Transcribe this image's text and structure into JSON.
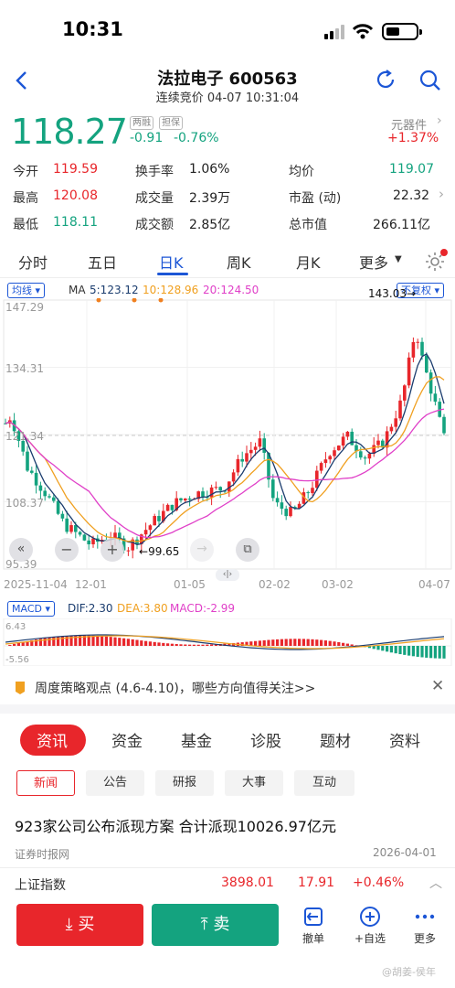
{
  "status": {
    "time": "10:31"
  },
  "header": {
    "title": "法拉电子 600563",
    "subtitle": "连续竞价 04-07 10:31:04"
  },
  "quote": {
    "price": "118.27",
    "tag1": "两融",
    "tag2": "担保",
    "change": "-0.91",
    "change_pct": "-0.76%",
    "sector": "元器件",
    "sector_pct": "+1.37%"
  },
  "stats": [
    {
      "l1": "今开",
      "v1": "119.59",
      "l2": "换手率",
      "v2": "1.06%",
      "l3": "均价",
      "v3": "119.07"
    },
    {
      "l1": "最高",
      "v1": "120.08",
      "l2": "成交量",
      "v2": "2.39万",
      "l3": "市盈 (动)",
      "v3": "22.32"
    },
    {
      "l1": "最低",
      "v1": "118.11",
      "l2": "成交额",
      "v2": "2.85亿",
      "l3": "总市值",
      "v3": "266.11亿"
    }
  ],
  "tabs": [
    "分时",
    "五日",
    "日K",
    "周K",
    "月K",
    "更多"
  ],
  "chart": {
    "ind_label": "均线",
    "ma_label": "MA",
    "ma5": "5:123.12",
    "ma10": "10:128.96",
    "ma20": "20:124.50",
    "adjust": "不复权",
    "y_labels": [
      "147.29",
      "134.31",
      "121.34",
      "108.37",
      "95.39"
    ],
    "x_labels": [
      "2025-11-04",
      "12-01",
      "01-05",
      "02-02",
      "03-02",
      "04-07"
    ],
    "high_label": "143.03",
    "low_label": "99.65",
    "macd_label": "MACD",
    "dif": "DIF:2.30",
    "dea": "DEA:3.80",
    "macd": "MACD:-2.99",
    "macd_max": "6.43",
    "macd_min": "-5.56",
    "colors": {
      "ma5": "#1a3c6e",
      "ma10": "#f0a020",
      "ma20": "#e040c8"
    }
  },
  "banner": {
    "text": "周度策略观点 (4.6-4.10)，哪些方向值得关注>>"
  },
  "section_tabs": [
    "资讯",
    "资金",
    "基金",
    "诊股",
    "题材",
    "资料"
  ],
  "chips": [
    "新闻",
    "公告",
    "研报",
    "大事",
    "互动"
  ],
  "news": {
    "title": "923家公司公布派现方案 合计派现10026.97亿元",
    "source": "证券时报网",
    "date": "2026-04-01"
  },
  "index": {
    "name": "上证指数",
    "value": "3898.01",
    "change": "17.91",
    "pct": "+0.46%"
  },
  "actions": {
    "buy": "买",
    "sell": "卖",
    "cancel": "撤单",
    "watch": "+自选",
    "more": "更多"
  },
  "watermark": "@胡姜-侯年"
}
